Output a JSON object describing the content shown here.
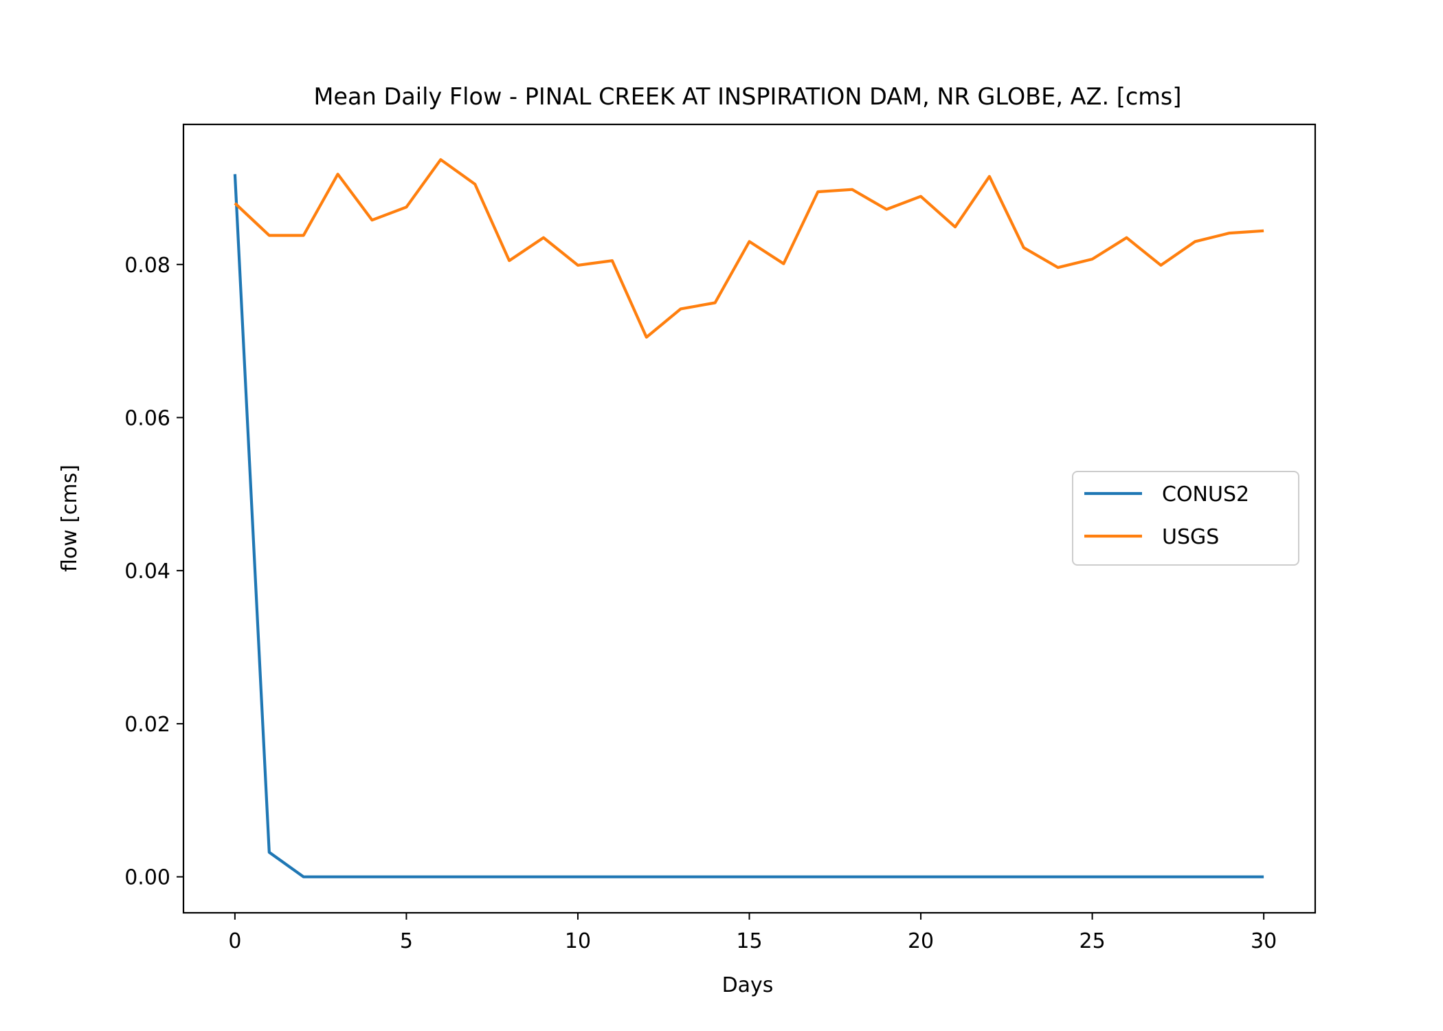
{
  "chart_data": {
    "type": "line",
    "title": "Mean Daily Flow - PINAL CREEK AT INSPIRATION DAM, NR GLOBE, AZ. [cms]",
    "xlabel": "Days",
    "ylabel": "flow [cms]",
    "xlim": [
      -1.5,
      31.5
    ],
    "ylim": [
      -0.0047,
      0.0983
    ],
    "xticks": [
      0,
      5,
      10,
      15,
      20,
      25,
      30
    ],
    "xtick_labels": [
      "0",
      "5",
      "10",
      "15",
      "20",
      "25",
      "30"
    ],
    "yticks": [
      0.0,
      0.02,
      0.04,
      0.06,
      0.08
    ],
    "ytick_labels": [
      "0.00",
      "0.02",
      "0.04",
      "0.06",
      "0.08"
    ],
    "grid": false,
    "legend_position": "center-right",
    "x": [
      0,
      1,
      2,
      3,
      4,
      5,
      6,
      7,
      8,
      9,
      10,
      11,
      12,
      13,
      14,
      15,
      16,
      17,
      18,
      19,
      20,
      21,
      22,
      23,
      24,
      25,
      26,
      27,
      28,
      29,
      30
    ],
    "series": [
      {
        "name": "CONUS2",
        "color": "#1f77b4",
        "values": [
          0.0918,
          0.0032,
          0.0,
          0.0,
          0.0,
          0.0,
          0.0,
          0.0,
          0.0,
          0.0,
          0.0,
          0.0,
          0.0,
          0.0,
          0.0,
          0.0,
          0.0,
          0.0,
          0.0,
          0.0,
          0.0,
          0.0,
          0.0,
          0.0,
          0.0,
          0.0,
          0.0,
          0.0,
          0.0,
          0.0,
          0.0
        ]
      },
      {
        "name": "USGS",
        "color": "#ff7f0e",
        "values": [
          0.088,
          0.0838,
          0.0838,
          0.0918,
          0.0858,
          0.0875,
          0.0937,
          0.0905,
          0.0805,
          0.0835,
          0.0799,
          0.0805,
          0.0705,
          0.0742,
          0.075,
          0.083,
          0.0801,
          0.0895,
          0.0898,
          0.0872,
          0.0889,
          0.0849,
          0.0915,
          0.0822,
          0.0796,
          0.0807,
          0.0835,
          0.0799,
          0.083,
          0.0841,
          0.0844
        ]
      }
    ]
  }
}
